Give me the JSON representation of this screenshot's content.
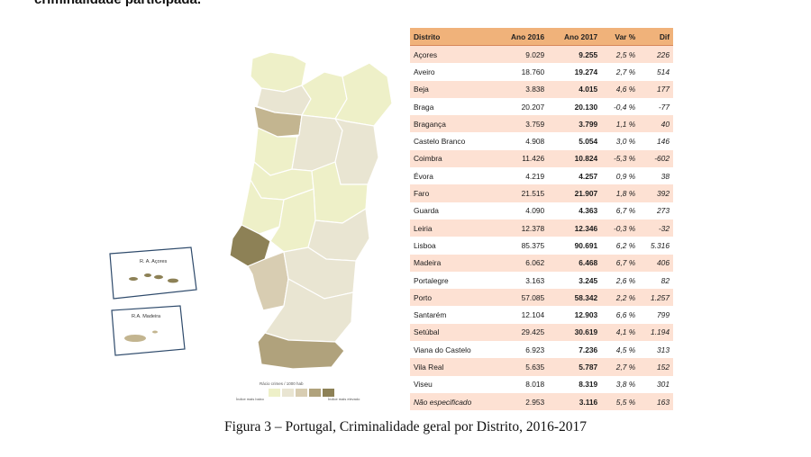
{
  "heading_fragment": "criminalidade participada.",
  "map": {
    "inset_acores": "R. A. Açores",
    "inset_madeira": "R.A. Madeira",
    "legend_title": "Rácio crimes / 1000 hab",
    "legend_low": "Índice mais baixo",
    "legend_high": "Índice mais elevado",
    "legend_colors": [
      "#eef0c8",
      "#e9e5d2",
      "#d8cdb2",
      "#b0a27c",
      "#8d8156"
    ]
  },
  "table": {
    "headers": [
      "Distrito",
      "Ano 2016",
      "Ano 2017",
      "Var %",
      "Dif"
    ],
    "rows": [
      {
        "distrito": "Açores",
        "a2016": "9.029",
        "a2017": "9.255",
        "var": "2,5 %",
        "dif": "226"
      },
      {
        "distrito": "Aveiro",
        "a2016": "18.760",
        "a2017": "19.274",
        "var": "2,7 %",
        "dif": "514"
      },
      {
        "distrito": "Beja",
        "a2016": "3.838",
        "a2017": "4.015",
        "var": "4,6 %",
        "dif": "177"
      },
      {
        "distrito": "Braga",
        "a2016": "20.207",
        "a2017": "20.130",
        "var": "-0,4 %",
        "dif": "-77"
      },
      {
        "distrito": "Bragança",
        "a2016": "3.759",
        "a2017": "3.799",
        "var": "1,1 %",
        "dif": "40"
      },
      {
        "distrito": "Castelo Branco",
        "a2016": "4.908",
        "a2017": "5.054",
        "var": "3,0 %",
        "dif": "146"
      },
      {
        "distrito": "Coimbra",
        "a2016": "11.426",
        "a2017": "10.824",
        "var": "-5,3 %",
        "dif": "-602"
      },
      {
        "distrito": "Évora",
        "a2016": "4.219",
        "a2017": "4.257",
        "var": "0,9 %",
        "dif": "38"
      },
      {
        "distrito": "Faro",
        "a2016": "21.515",
        "a2017": "21.907",
        "var": "1,8 %",
        "dif": "392"
      },
      {
        "distrito": "Guarda",
        "a2016": "4.090",
        "a2017": "4.363",
        "var": "6,7 %",
        "dif": "273"
      },
      {
        "distrito": "Leiria",
        "a2016": "12.378",
        "a2017": "12.346",
        "var": "-0,3 %",
        "dif": "-32"
      },
      {
        "distrito": "Lisboa",
        "a2016": "85.375",
        "a2017": "90.691",
        "var": "6,2 %",
        "dif": "5.316"
      },
      {
        "distrito": "Madeira",
        "a2016": "6.062",
        "a2017": "6.468",
        "var": "6,7 %",
        "dif": "406"
      },
      {
        "distrito": "Portalegre",
        "a2016": "3.163",
        "a2017": "3.245",
        "var": "2,6 %",
        "dif": "82"
      },
      {
        "distrito": "Porto",
        "a2016": "57.085",
        "a2017": "58.342",
        "var": "2,2 %",
        "dif": "1.257"
      },
      {
        "distrito": "Santarém",
        "a2016": "12.104",
        "a2017": "12.903",
        "var": "6,6 %",
        "dif": "799"
      },
      {
        "distrito": "Setúbal",
        "a2016": "29.425",
        "a2017": "30.619",
        "var": "4,1 %",
        "dif": "1.194"
      },
      {
        "distrito": "Viana do Castelo",
        "a2016": "6.923",
        "a2017": "7.236",
        "var": "4,5 %",
        "dif": "313"
      },
      {
        "distrito": "Vila Real",
        "a2016": "5.635",
        "a2017": "5.787",
        "var": "2,7 %",
        "dif": "152"
      },
      {
        "distrito": "Viseu",
        "a2016": "8.018",
        "a2017": "8.319",
        "var": "3,8 %",
        "dif": "301"
      },
      {
        "distrito": "Não especificado",
        "a2016": "2.953",
        "a2017": "3.116",
        "var": "5,5 %",
        "dif": "163"
      }
    ]
  },
  "caption": "Figura 3 – Portugal, Criminalidade geral por Distrito, 2016-2017"
}
